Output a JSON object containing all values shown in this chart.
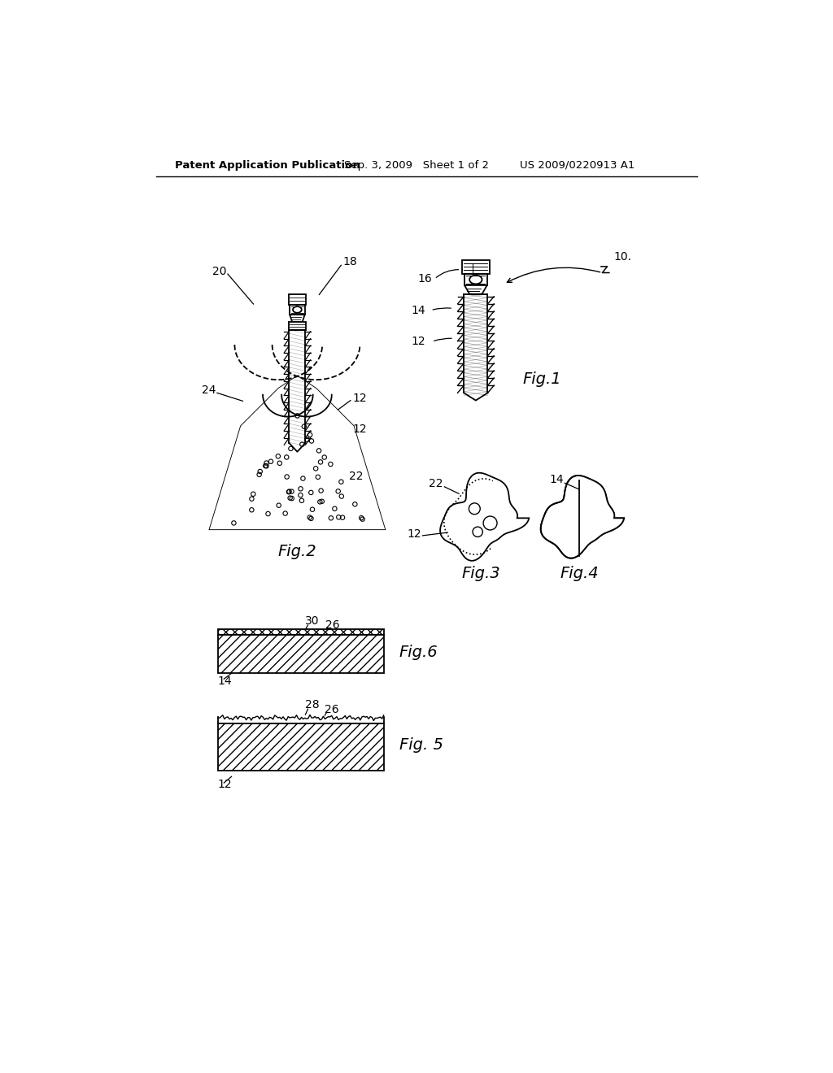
{
  "bg_color": "#ffffff",
  "header_text": "Patent Application Publication",
  "header_date": "Sep. 3, 2009   Sheet 1 of 2",
  "header_patent": "US 2009/0220913 A1",
  "fig_labels": {
    "fig1": "Fig.1",
    "fig2": "Fig.2",
    "fig3": "Fig.3",
    "fig4": "Fig.4",
    "fig5": "Fig. 5",
    "fig6": "Fig.6"
  },
  "line_color": "#000000",
  "text_color": "#000000"
}
